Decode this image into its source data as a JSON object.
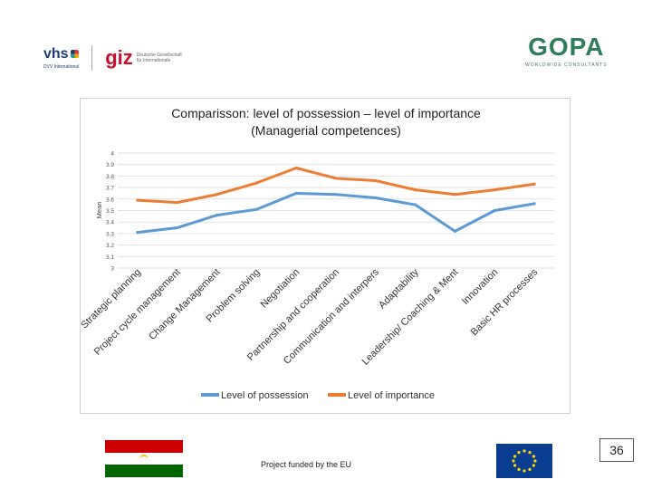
{
  "header": {
    "vhs_name": "vhs",
    "vhs_sub": "DVV International",
    "giz_name": "giz",
    "giz_sub_line1": "Deutsche Gesellschaft",
    "giz_sub_line2": "für Internationale",
    "gopa_name": "GOPA",
    "gopa_sub": "WORLDWIDE CONSULTANTS"
  },
  "chart_data": {
    "type": "line",
    "title_line1": "Comparisson: level of possession – level of importance",
    "title_line2": "(Managerial competences)",
    "ylabel": "Mean",
    "xlabel": "",
    "ylim": [
      3,
      4
    ],
    "yticks": [
      "4",
      "3.9",
      "3.8",
      "3.7",
      "3.6",
      "3.5",
      "3.4",
      "3.3",
      "3.2",
      "3.1",
      "3"
    ],
    "categories": [
      "Strategic planning",
      "Project cycle management",
      "Change Management",
      "Problem solving",
      "Negotiation",
      "Partnership and cooperation",
      "Communication and interpers",
      "Adaptability",
      "Leadership/ Coaching & Ment",
      "Innovation",
      "Basic HR processes"
    ],
    "series": [
      {
        "name": "Level of possession",
        "color": "#5b9bd5",
        "values": [
          3.31,
          3.35,
          3.46,
          3.51,
          3.65,
          3.64,
          3.61,
          3.55,
          3.32,
          3.5,
          3.56
        ]
      },
      {
        "name": "Level of importance",
        "color": "#ed7d31",
        "values": [
          3.59,
          3.57,
          3.64,
          3.74,
          3.87,
          3.78,
          3.76,
          3.68,
          3.64,
          3.68,
          3.73
        ]
      }
    ],
    "legend_position": "bottom"
  },
  "footer": {
    "funded_text": "Project funded by the EU",
    "page_number": "36"
  }
}
